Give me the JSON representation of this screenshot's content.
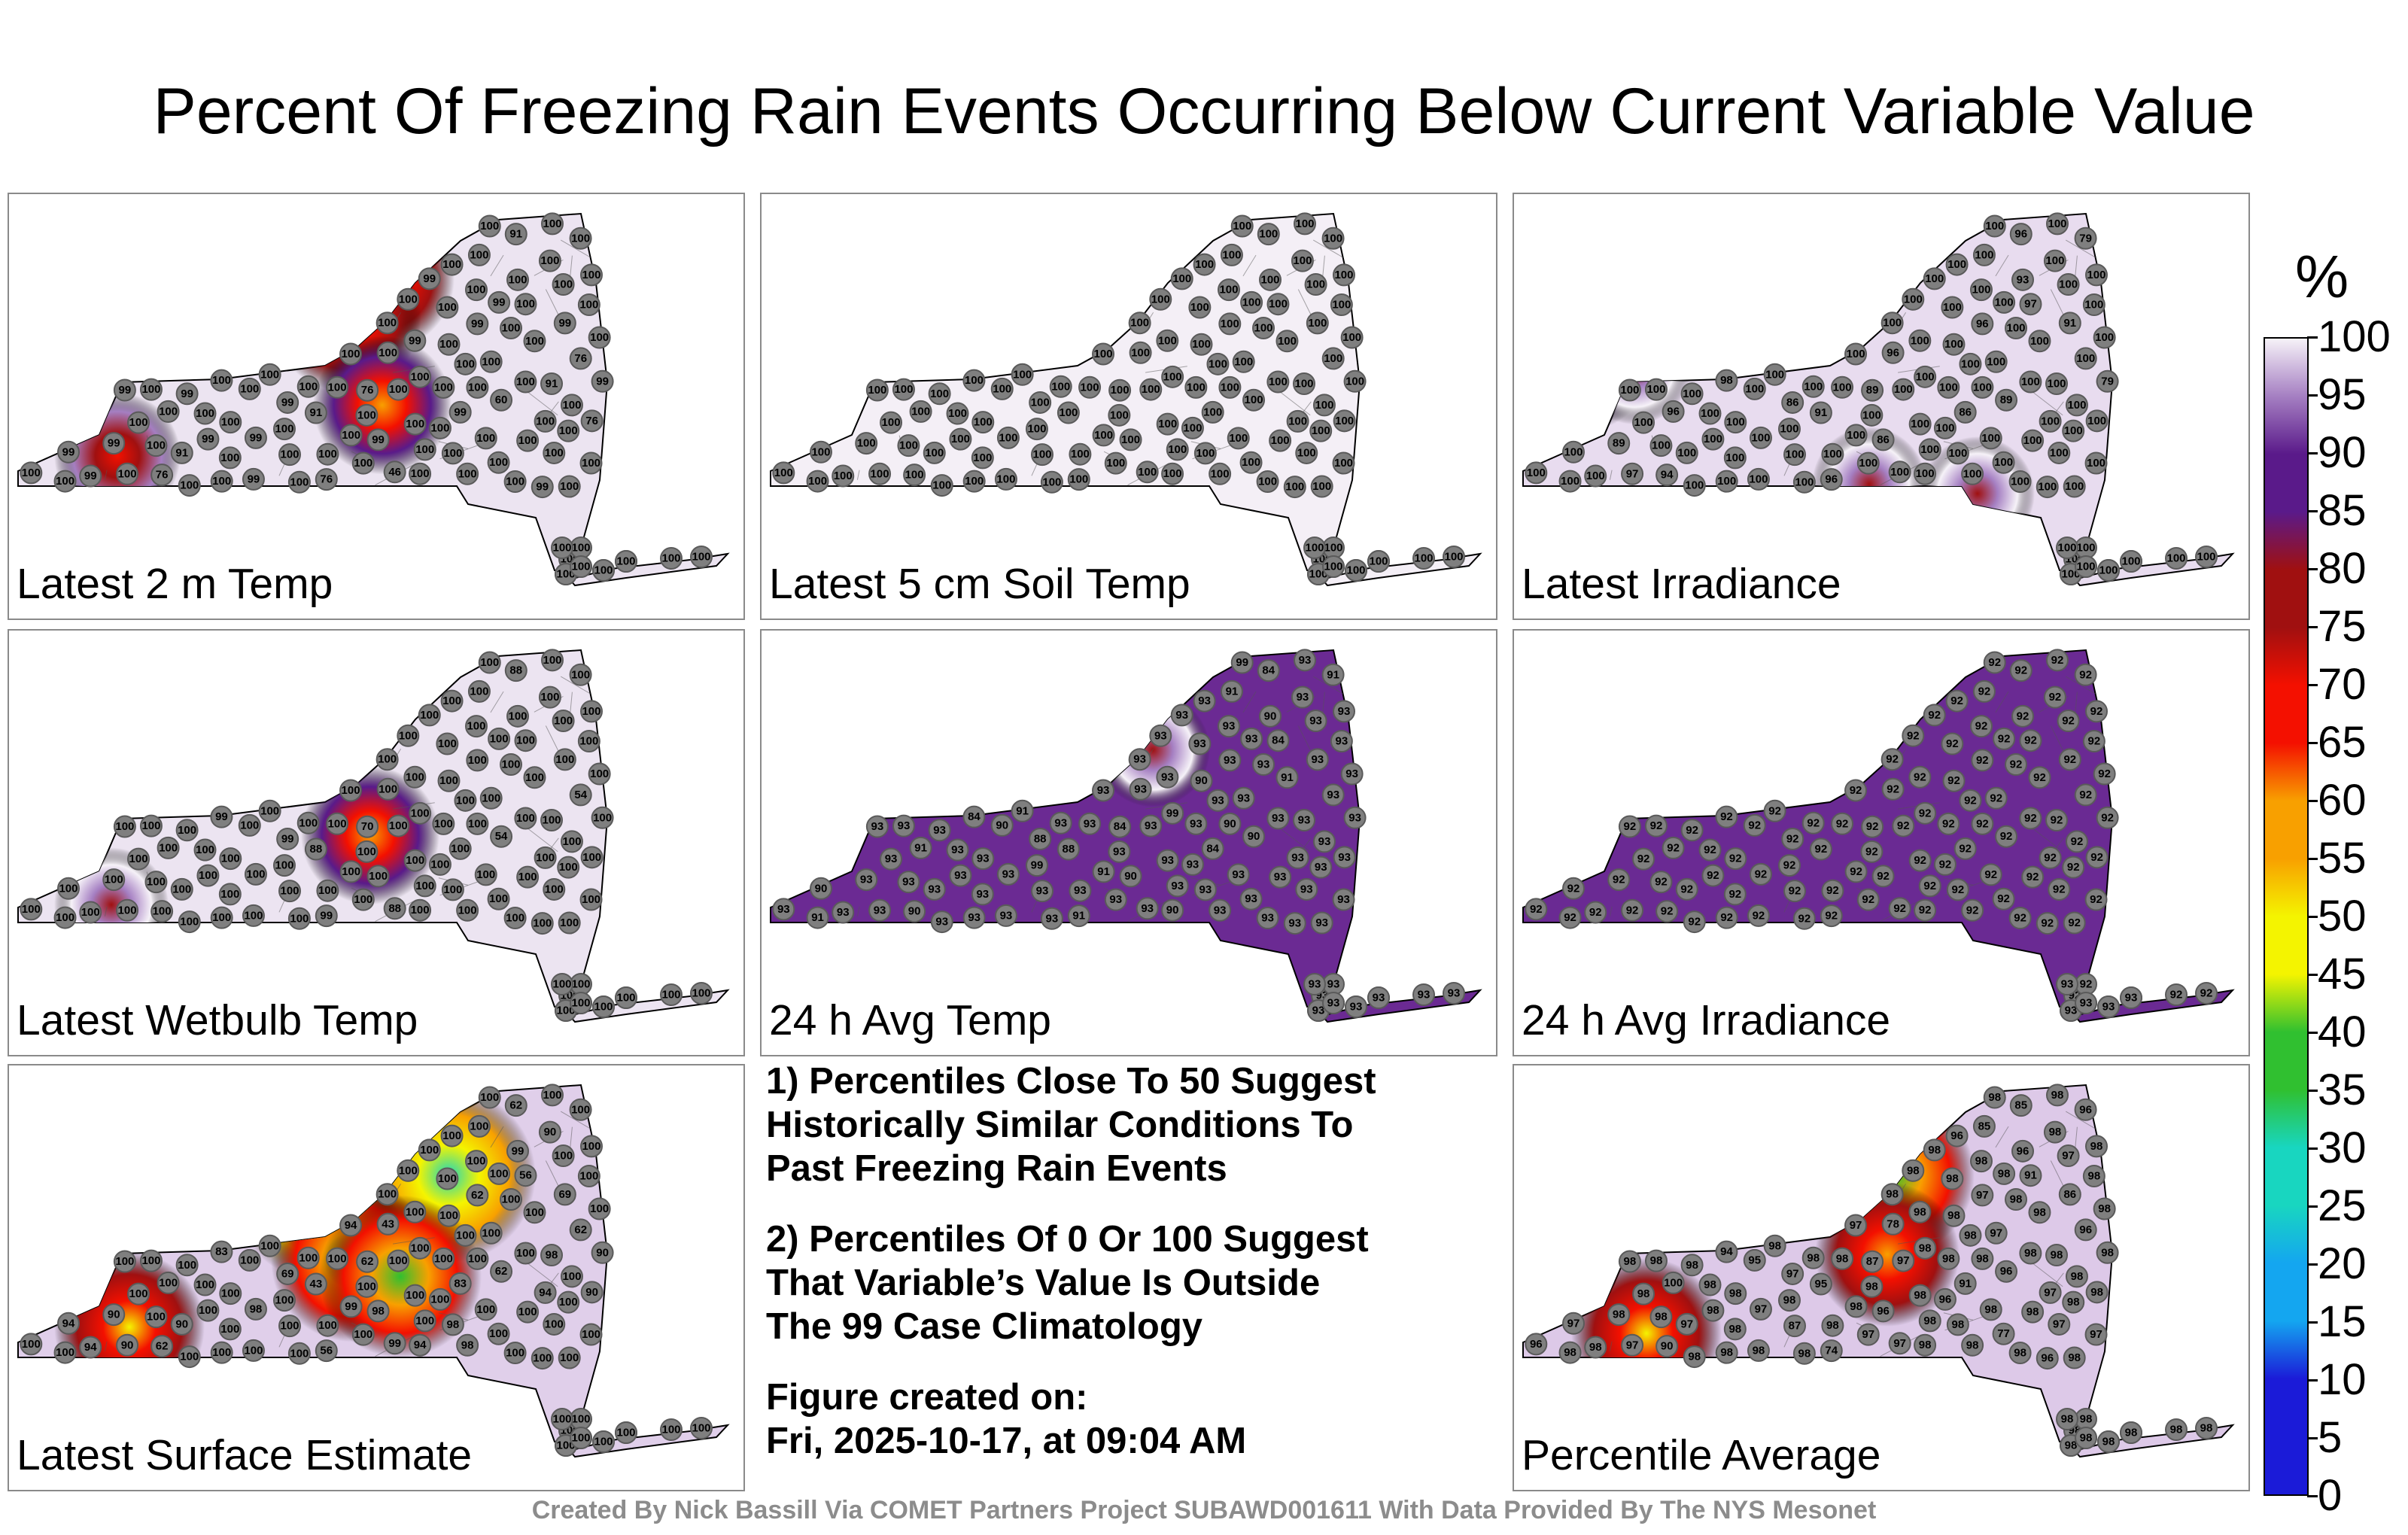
{
  "title": "Percent Of Freezing Rain Events Occurring Below Current Variable Value",
  "panels": [
    {
      "label": "Latest 2 m Temp",
      "hot": [
        [
          0.45,
          0.22,
          0.55
        ],
        [
          0.62,
          0.22,
          0.55
        ],
        [
          0.56,
          0.34,
          0.5
        ],
        [
          0.62,
          0.62,
          0.6
        ],
        [
          0.18,
          0.78,
          0.7
        ]
      ],
      "stations": [
        "100",
        "100",
        "99",
        "91",
        "60",
        "99",
        "91",
        "76",
        "76",
        "99",
        "91",
        "100",
        "76",
        "100",
        "100",
        "100",
        "99",
        "99",
        "100",
        "100",
        "99",
        "76",
        "100",
        "99",
        "46",
        "100",
        "100",
        "99",
        "91",
        "100",
        "99",
        "99",
        "76",
        "100",
        "100",
        "100",
        "99",
        "100",
        "100",
        "100",
        "100",
        "100",
        "100",
        "99",
        "99",
        "100",
        "100",
        "100",
        "99",
        "100",
        "100",
        "100",
        "100",
        "100",
        "99",
        "100",
        "100",
        "100",
        "100",
        "100",
        "100",
        "100",
        "99",
        "100",
        "100",
        "100",
        "100",
        "100",
        "100",
        "100",
        "100",
        "99",
        "100",
        "100",
        "100",
        "100",
        "100",
        "100",
        "100",
        "100",
        "100",
        "100",
        "100",
        "100",
        "100",
        "100",
        "100",
        "100",
        "100",
        "100",
        "100",
        "99",
        "100",
        "100",
        "100",
        "100",
        "100",
        "100",
        "100",
        "100",
        "100",
        "100",
        "100",
        "100",
        "100",
        "100",
        "100",
        "100",
        "100",
        "100"
      ]
    },
    {
      "label": "Latest 5 cm Soil Temp",
      "hot": [],
      "stations": [
        "100",
        "100",
        "100",
        "100",
        "100",
        "100",
        "100",
        "100",
        "100",
        "100",
        "100",
        "100",
        "100",
        "100",
        "100",
        "100",
        "100",
        "100",
        "100",
        "100",
        "100",
        "100",
        "100",
        "100",
        "100",
        "100",
        "100",
        "100",
        "100",
        "100",
        "100",
        "100",
        "100",
        "100",
        "100",
        "100",
        "100",
        "100",
        "100",
        "100",
        "100",
        "100",
        "100",
        "100",
        "100",
        "100",
        "100",
        "100",
        "100",
        "100",
        "100",
        "100",
        "100",
        "100",
        "100",
        "100",
        "100",
        "100",
        "100",
        "100",
        "100",
        "100",
        "100",
        "100",
        "100",
        "100",
        "100",
        "100",
        "100",
        "100",
        "100",
        "100",
        "100",
        "100",
        "100",
        "100",
        "100",
        "100",
        "100",
        "100",
        "100",
        "100",
        "100",
        "100",
        "100",
        "100",
        "100",
        "100",
        "100",
        "100",
        "100",
        "100",
        "100",
        "100",
        "100",
        "100",
        "100",
        "100",
        "100",
        "100",
        "100",
        "100",
        "100",
        "100",
        "100",
        "100",
        "100",
        "100",
        "100",
        "100"
      ]
    },
    {
      "label": "Latest Irradiance",
      "hot": [
        [
          0.12,
          0.5,
          0.7
        ],
        [
          0.2,
          0.5,
          0.8
        ],
        [
          0.59,
          0.87,
          0.8
        ],
        [
          0.77,
          0.9,
          0.8
        ]
      ],
      "stations": [
        "100",
        "100",
        "86",
        "100",
        "89",
        "86",
        "91",
        "96",
        "89",
        "86",
        "96",
        "98",
        "94",
        "97",
        "93",
        "96",
        "91",
        "89",
        "97",
        "100",
        "100",
        "100",
        "96",
        "96",
        "100",
        "100",
        "100",
        "100",
        "100",
        "100",
        "100",
        "100",
        "100",
        "100",
        "100",
        "100",
        "100",
        "100",
        "100",
        "100",
        "100",
        "100",
        "100",
        "100",
        "79",
        "100",
        "100",
        "79",
        "100",
        "100",
        "100",
        "100",
        "100",
        "100",
        "100",
        "100",
        "100",
        "100",
        "100",
        "100",
        "100",
        "100",
        "100",
        "100",
        "100",
        "100",
        "100",
        "100",
        "100",
        "100",
        "100",
        "100",
        "100",
        "100",
        "100",
        "100",
        "100",
        "100",
        "100",
        "100",
        "100",
        "100",
        "100",
        "100",
        "100",
        "100",
        "100",
        "100",
        "100",
        "100",
        "100",
        "100",
        "100",
        "100",
        "100",
        "100",
        "100",
        "100",
        "100",
        "100",
        "100",
        "100",
        "100",
        "100",
        "100",
        "100",
        "100",
        "100",
        "100",
        "100"
      ]
    },
    {
      "label": "Latest Wetbulb Temp",
      "hot": [
        [
          0.5,
          0.25,
          0.6
        ],
        [
          0.6,
          0.6,
          0.6
        ],
        [
          0.17,
          0.82,
          0.8
        ]
      ],
      "stations": [
        "100",
        "100",
        "99",
        "100",
        "54",
        "100",
        "88",
        "99",
        "70",
        "100",
        "88",
        "99",
        "100",
        "100",
        "100",
        "100",
        "100",
        "100",
        "100",
        "100",
        "100",
        "54",
        "100",
        "100",
        "88",
        "100",
        "100",
        "100",
        "100",
        "100",
        "100",
        "100",
        "100",
        "100",
        "100",
        "100",
        "100",
        "100",
        "100",
        "100",
        "100",
        "100",
        "100",
        "100",
        "100",
        "100",
        "100",
        "100",
        "100",
        "100",
        "100",
        "100",
        "100",
        "100",
        "100",
        "100",
        "100",
        "100",
        "100",
        "100",
        "100",
        "100",
        "100",
        "100",
        "100",
        "100",
        "100",
        "100",
        "100",
        "100",
        "100",
        "100",
        "100",
        "100",
        "100",
        "100",
        "100",
        "100",
        "100",
        "100",
        "100",
        "100",
        "100",
        "100",
        "100",
        "100",
        "100",
        "100",
        "100",
        "100",
        "100",
        "100",
        "100",
        "100",
        "100",
        "100",
        "100",
        "100",
        "100",
        "100",
        "100",
        "100",
        "100",
        "100",
        "100",
        "100",
        "100",
        "100",
        "100",
        "100"
      ]
    },
    {
      "label": "24 h Avg Temp",
      "hot": [
        [
          0.6,
          0.25,
          0.8
        ],
        [
          0.65,
          0.33,
          0.8
        ]
      ],
      "stations": [
        "93",
        "91",
        "88",
        "93",
        "90",
        "84",
        "88",
        "91",
        "84",
        "90",
        "84",
        "84",
        "90",
        "84",
        "90",
        "93",
        "93",
        "93",
        "93",
        "93",
        "93",
        "93",
        "91",
        "93",
        "93",
        "93",
        "93",
        "90",
        "93",
        "93",
        "93",
        "93",
        "93",
        "90",
        "93",
        "93",
        "93",
        "93",
        "93",
        "91",
        "93",
        "93",
        "93",
        "93",
        "93",
        "90",
        "93",
        "91",
        "93",
        "93",
        "93",
        "93",
        "93",
        "93",
        "93",
        "93",
        "93",
        "91",
        "93",
        "93",
        "93",
        "93",
        "93",
        "91",
        "90",
        "90",
        "93",
        "91",
        "93",
        "93",
        "93",
        "93",
        "93",
        "93",
        "93",
        "93",
        "93",
        "93",
        "93",
        "93",
        "93",
        "93",
        "93",
        "93",
        "93",
        "93",
        "93",
        "93",
        "93",
        "93",
        "93",
        "93",
        "93",
        "99",
        "99",
        "93",
        "99",
        "93",
        "99",
        "93",
        "93",
        "93",
        "93",
        "93",
        "93",
        "93",
        "93",
        "93",
        "93",
        "93"
      ]
    },
    {
      "label": "24 h Avg Irradiance",
      "hot": [],
      "stations": [
        "92",
        "92",
        "92",
        "92",
        "92",
        "92",
        "92",
        "92",
        "92",
        "92",
        "92",
        "92",
        "92",
        "92",
        "92",
        "92",
        "92",
        "92",
        "92",
        "92",
        "92",
        "92",
        "92",
        "92",
        "92",
        "92",
        "92",
        "92",
        "92",
        "92",
        "92",
        "92",
        "92",
        "92",
        "92",
        "92",
        "92",
        "92",
        "92",
        "92",
        "92",
        "92",
        "92",
        "92",
        "92",
        "92",
        "92",
        "92",
        "92",
        "92",
        "92",
        "92",
        "92",
        "92",
        "92",
        "92",
        "92",
        "92",
        "92",
        "92",
        "92",
        "92",
        "92",
        "92",
        "92",
        "92",
        "92",
        "92",
        "92",
        "92",
        "92",
        "92",
        "92",
        "92",
        "92",
        "92",
        "92",
        "92",
        "92",
        "92",
        "92",
        "92",
        "92",
        "92",
        "92",
        "92",
        "92",
        "92",
        "92",
        "92",
        "92",
        "92",
        "92",
        "92",
        "92",
        "92",
        "92",
        "92",
        "92",
        "92",
        "92",
        "92",
        "92",
        "92",
        "92",
        "93",
        "93",
        "93",
        "93",
        "93"
      ]
    },
    {
      "label": "Latest Surface Estimate",
      "hot": [
        [
          0.52,
          0.22,
          0.2
        ],
        [
          0.6,
          0.25,
          0.2
        ],
        [
          0.52,
          0.35,
          0.25
        ],
        [
          0.63,
          0.3,
          0.2
        ],
        [
          0.73,
          0.3,
          0.3
        ],
        [
          0.57,
          0.57,
          0.4
        ],
        [
          0.65,
          0.62,
          0.4
        ],
        [
          0.2,
          0.78,
          0.5
        ]
      ],
      "stations": [
        "98",
        "99",
        "69",
        "90",
        "62",
        "83",
        "43",
        "56",
        "62",
        "98",
        "62",
        "83",
        "62",
        "56",
        "99",
        "43",
        "69",
        "90",
        "90",
        "94",
        "94",
        "62",
        "100",
        "62",
        "99",
        "100",
        "90",
        "94",
        "98",
        "100",
        "98",
        "100",
        "90",
        "94",
        "98",
        "100",
        "100",
        "100",
        "100",
        "100",
        "100",
        "100",
        "100",
        "100",
        "90",
        "100",
        "100",
        "100",
        "100",
        "100",
        "100",
        "100",
        "100",
        "100",
        "100",
        "94",
        "100",
        "100",
        "100",
        "100",
        "100",
        "100",
        "100",
        "100",
        "100",
        "100",
        "100",
        "100",
        "100",
        "100",
        "100",
        "100",
        "100",
        "100",
        "100",
        "100",
        "100",
        "100",
        "100",
        "100",
        "100",
        "100",
        "100",
        "100",
        "100",
        "100",
        "100",
        "100",
        "100",
        "100",
        "100",
        "100",
        "100",
        "100",
        "100",
        "100",
        "100",
        "100",
        "100",
        "100",
        "100",
        "100",
        "100",
        "100",
        "100",
        "100",
        "100",
        "100",
        "100",
        "100"
      ]
    },
    {
      "label": "Percentile Average",
      "hot": [
        [
          0.58,
          0.25,
          0.4
        ],
        [
          0.63,
          0.3,
          0.4
        ],
        [
          0.22,
          0.8,
          0.5
        ],
        [
          0.62,
          0.55,
          0.55
        ]
      ],
      "stations": [
        "98",
        "98",
        "97",
        "97",
        "96",
        "91",
        "95",
        "74",
        "87",
        "96",
        "85",
        "94",
        "90",
        "91",
        "96",
        "78",
        "86",
        "98",
        "97",
        "97",
        "98",
        "96",
        "100",
        "97",
        "97",
        "96",
        "98",
        "97",
        "98",
        "98",
        "97",
        "98",
        "98",
        "98",
        "98",
        "87",
        "98",
        "98",
        "98",
        "98",
        "98",
        "97",
        "77",
        "98",
        "98",
        "98",
        "96",
        "96",
        "96",
        "97",
        "97",
        "98",
        "98",
        "96",
        "98",
        "97",
        "97",
        "98",
        "97",
        "98",
        "98",
        "98",
        "98",
        "85",
        "95",
        "98",
        "97",
        "98",
        "98",
        "98",
        "98",
        "98",
        "98",
        "98",
        "98",
        "98",
        "98",
        "98",
        "98",
        "98",
        "98",
        "98",
        "98",
        "98",
        "98",
        "98",
        "98",
        "98",
        "98",
        "98",
        "98",
        "98",
        "98",
        "98",
        "98",
        "98",
        "98",
        "98",
        "98",
        "98",
        "98",
        "98",
        "98",
        "98",
        "98",
        "98",
        "98",
        "98",
        "98",
        "98"
      ]
    }
  ],
  "notes": {
    "note1": "1) Percentiles Close To 50 Suggest\nHistorically Similar Conditions To\nPast Freezing Rain Events",
    "note2": "2) Percentiles Of 0 Or 100 Suggest\nThat Variable’s Value Is Outside\nThe 99 Case Climatology",
    "created_label": "Figure created on:",
    "created_value": "Fri, 2025-10-17, at 09:04 AM"
  },
  "legend": {
    "unit": "%",
    "ticks": [
      "100",
      "95",
      "90",
      "85",
      "80",
      "75",
      "70",
      "65",
      "60",
      "55",
      "50",
      "45",
      "40",
      "35",
      "30",
      "25",
      "20",
      "15",
      "10",
      "5",
      "0"
    ]
  },
  "credits": "Created By Nick Bassill Via COMET Partners Project SUBAWD001611 With Data Provided By The NYS Mesonet"
}
